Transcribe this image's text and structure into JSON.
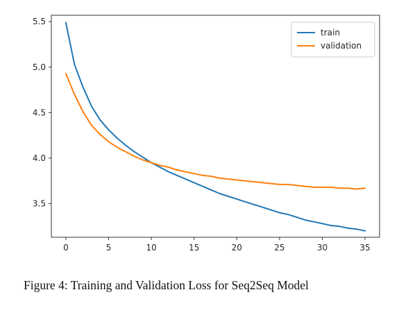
{
  "figure": {
    "caption": "Figure 4: Training and Validation Loss for Seq2Seq Model"
  },
  "chart_data": {
    "type": "line",
    "title": "",
    "xlabel": "",
    "ylabel": "",
    "xlim": [
      -1.7,
      36.7
    ],
    "ylim": [
      3.13,
      5.57
    ],
    "xticks": [
      0,
      5,
      10,
      15,
      20,
      25,
      30,
      35
    ],
    "yticks": [
      3.5,
      4.0,
      4.5,
      5.0,
      5.5
    ],
    "ytick_labels": [
      "3.5",
      "4.0",
      "4.5",
      "5.0",
      "5.5"
    ],
    "grid": false,
    "legend": "top-right",
    "x": [
      0,
      1,
      2,
      3,
      4,
      5,
      6,
      7,
      8,
      9,
      10,
      11,
      12,
      13,
      14,
      15,
      16,
      17,
      18,
      19,
      20,
      21,
      22,
      23,
      24,
      25,
      26,
      27,
      28,
      29,
      30,
      31,
      32,
      33,
      34,
      35
    ],
    "series": [
      {
        "name": "train",
        "color": "#1f77b4",
        "values": [
          5.49,
          5.03,
          4.78,
          4.57,
          4.42,
          4.31,
          4.22,
          4.14,
          4.07,
          4.01,
          3.95,
          3.9,
          3.85,
          3.81,
          3.77,
          3.73,
          3.69,
          3.65,
          3.61,
          3.58,
          3.55,
          3.52,
          3.49,
          3.46,
          3.43,
          3.4,
          3.38,
          3.35,
          3.32,
          3.3,
          3.28,
          3.26,
          3.25,
          3.23,
          3.22,
          3.2
        ]
      },
      {
        "name": "validation",
        "color": "#ff7f0e",
        "values": [
          4.93,
          4.7,
          4.51,
          4.36,
          4.26,
          4.18,
          4.12,
          4.07,
          4.02,
          3.98,
          3.95,
          3.92,
          3.9,
          3.87,
          3.85,
          3.83,
          3.81,
          3.8,
          3.78,
          3.77,
          3.76,
          3.75,
          3.74,
          3.73,
          3.72,
          3.71,
          3.71,
          3.7,
          3.69,
          3.68,
          3.68,
          3.68,
          3.67,
          3.67,
          3.66,
          3.67
        ]
      }
    ]
  }
}
